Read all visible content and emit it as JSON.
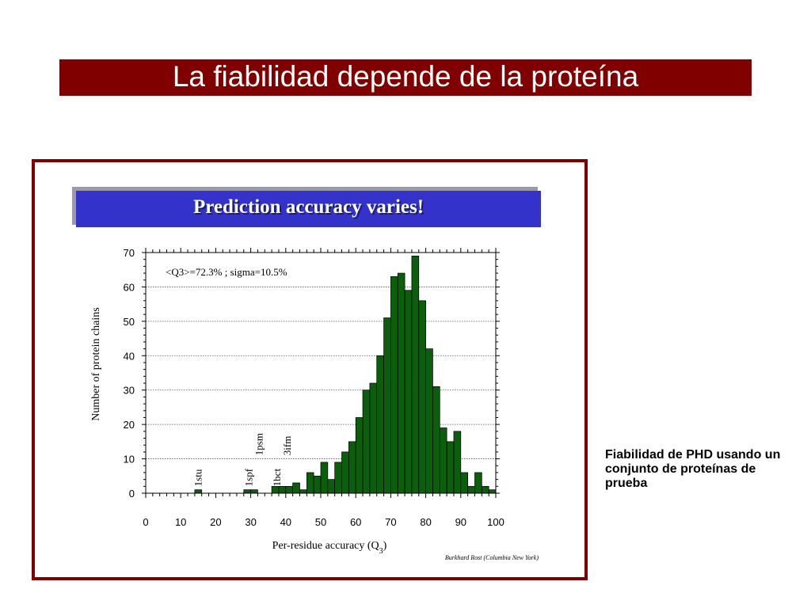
{
  "slide": {
    "title": "La fiabilidad depende de la proteína",
    "banner": "Prediction accuracy varies!",
    "caption": "Fiabilidad de PHD usando un conjunto de proteínas de prueba",
    "credit": "Burkhard Rost (Columbia New York)"
  },
  "colors": {
    "title_bar": "#800000",
    "panel_border": "#800000",
    "banner": "#3333cc",
    "bars": "#0b5e0b"
  },
  "chart_data": {
    "type": "bar",
    "annotation": "<Q3>=72.3% ; sigma=10.5%",
    "xlabel": "Per-residue accuracy (Q",
    "xlabel_subscript": "3",
    "xlabel_close": ")",
    "ylabel": "Number of protein chains",
    "xlim": [
      0,
      100
    ],
    "ylim": [
      0,
      70
    ],
    "grid": true,
    "bin_width": 2,
    "x_ticks": [
      "0",
      "10",
      "20",
      "30",
      "40",
      "50",
      "60",
      "70",
      "80",
      "90",
      "100"
    ],
    "y_ticks": [
      "0",
      "10",
      "20",
      "30",
      "40",
      "50",
      "60",
      "70"
    ],
    "bins": [
      {
        "x": 14,
        "y": 1
      },
      {
        "x": 28,
        "y": 1
      },
      {
        "x": 30,
        "y": 1
      },
      {
        "x": 36,
        "y": 2
      },
      {
        "x": 38,
        "y": 2
      },
      {
        "x": 40,
        "y": 2
      },
      {
        "x": 42,
        "y": 3
      },
      {
        "x": 44,
        "y": 1
      },
      {
        "x": 46,
        "y": 6
      },
      {
        "x": 48,
        "y": 5
      },
      {
        "x": 50,
        "y": 9
      },
      {
        "x": 52,
        "y": 4
      },
      {
        "x": 54,
        "y": 9
      },
      {
        "x": 56,
        "y": 12
      },
      {
        "x": 58,
        "y": 15
      },
      {
        "x": 60,
        "y": 22
      },
      {
        "x": 62,
        "y": 30
      },
      {
        "x": 64,
        "y": 32
      },
      {
        "x": 66,
        "y": 40
      },
      {
        "x": 68,
        "y": 51
      },
      {
        "x": 70,
        "y": 63
      },
      {
        "x": 72,
        "y": 64
      },
      {
        "x": 74,
        "y": 59
      },
      {
        "x": 76,
        "y": 69
      },
      {
        "x": 78,
        "y": 56
      },
      {
        "x": 80,
        "y": 42
      },
      {
        "x": 82,
        "y": 31
      },
      {
        "x": 84,
        "y": 19
      },
      {
        "x": 86,
        "y": 15
      },
      {
        "x": 88,
        "y": 18
      },
      {
        "x": 90,
        "y": 6
      },
      {
        "x": 92,
        "y": 2
      },
      {
        "x": 94,
        "y": 6
      },
      {
        "x": 96,
        "y": 2
      },
      {
        "x": 98,
        "y": 1
      }
    ],
    "labels": [
      {
        "text": "1stu",
        "x": 15,
        "y": 2
      },
      {
        "text": "1spf",
        "x": 29.5,
        "y": 2
      },
      {
        "text": "1psm",
        "x": 32.5,
        "y": 11
      },
      {
        "text": "1bct",
        "x": 37.5,
        "y": 2
      },
      {
        "text": "3ifm",
        "x": 40.5,
        "y": 11
      }
    ]
  }
}
